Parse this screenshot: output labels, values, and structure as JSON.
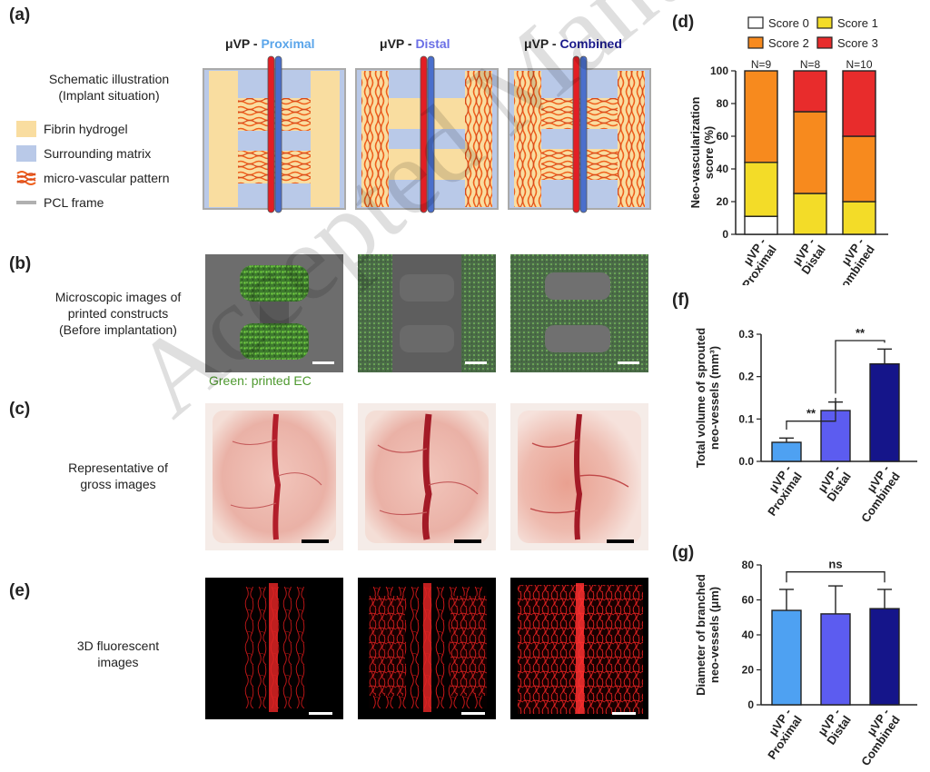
{
  "panels": {
    "a": "(a)",
    "b": "(b)",
    "c": "(c)",
    "d": "(d)",
    "e": "(e)",
    "f": "(f)",
    "g": "(g)"
  },
  "schematic": {
    "title_line1": "Schematic illustration",
    "title_line2": "(Implant situation)",
    "legend": [
      {
        "label": "Fibrin hydrogel",
        "color": "#f9dda0"
      },
      {
        "label": "Surrounding matrix",
        "color": "#b9c9e8"
      },
      {
        "label": "micro-vascular pattern",
        "color": "#ef5f1c"
      },
      {
        "label": "PCL frame",
        "color": "#b0b0b0"
      }
    ],
    "columns": [
      {
        "prefix": "μVP - ",
        "name": "Proximal",
        "color": "#5aa5ea"
      },
      {
        "prefix": "μVP - ",
        "name": "Distal",
        "color": "#6b6fe6"
      },
      {
        "prefix": "μVP - ",
        "name": "Combined",
        "color": "#1a1a8c"
      }
    ]
  },
  "row_b": {
    "line1": "Microscopic images of",
    "line2": "printed constructs",
    "line3": "(Before implantation)",
    "caption": "Green: printed EC"
  },
  "row_c": {
    "line1": "Representative of",
    "line2": "gross images"
  },
  "row_e": {
    "line1": "3D fluorescent",
    "line2": "images"
  },
  "watermark": "Accepted Manuscript",
  "chart_data": [
    {
      "panel": "d",
      "type": "bar",
      "stacked": true,
      "categories": [
        "μVP - Proximal",
        "μVP - Distal",
        "μVP - Combined"
      ],
      "n_labels": [
        "N=9",
        "N=8",
        "N=10"
      ],
      "series": [
        {
          "name": "Score 0",
          "color": "#ffffff",
          "values": [
            11,
            0,
            0
          ]
        },
        {
          "name": "Score 1",
          "color": "#f3dc28",
          "values": [
            33,
            25,
            20
          ]
        },
        {
          "name": "Score 2",
          "color": "#f78a1e",
          "values": [
            56,
            50,
            40
          ]
        },
        {
          "name": "Score 3",
          "color": "#e82c2c",
          "values": [
            0,
            25,
            40
          ]
        }
      ],
      "ylabel_line1": "Neo-vascularization",
      "ylabel_line2": "score (%)",
      "ylim": [
        0,
        100
      ],
      "yticks": [
        0,
        20,
        40,
        60,
        80,
        100
      ],
      "legend_position": "top"
    },
    {
      "panel": "f",
      "type": "bar",
      "categories": [
        "μVP - Proximal",
        "μVP - Distal",
        "μVP - Combined"
      ],
      "values": [
        0.045,
        0.12,
        0.23
      ],
      "errors": [
        0.01,
        0.02,
        0.035
      ],
      "colors": [
        "#4ea1f2",
        "#5c5cf0",
        "#15158a"
      ],
      "ylabel_line1": "Total volume of sprouted",
      "ylabel_line2": "neo-vessels (mm³)",
      "ylim": [
        0,
        0.3
      ],
      "yticks": [
        "0.0",
        "0.1",
        "0.2",
        "0.3"
      ],
      "significance": [
        {
          "from": 0,
          "to": 1,
          "label": "**"
        },
        {
          "from": 1,
          "to": 2,
          "label": "**"
        }
      ]
    },
    {
      "panel": "g",
      "type": "bar",
      "categories": [
        "μVP - Proximal",
        "μVP - Distal",
        "μVP - Combined"
      ],
      "values": [
        54,
        52,
        55
      ],
      "errors": [
        12,
        16,
        11
      ],
      "colors": [
        "#4ea1f2",
        "#5c5cf0",
        "#15158a"
      ],
      "ylabel_line1": "Diameter of branched",
      "ylabel_line2": "neo-vessels (μm)",
      "ylim": [
        0,
        80
      ],
      "yticks": [
        "0",
        "20",
        "40",
        "60",
        "80"
      ],
      "significance": [
        {
          "from": 0,
          "to": 2,
          "label": "ns"
        }
      ]
    }
  ]
}
